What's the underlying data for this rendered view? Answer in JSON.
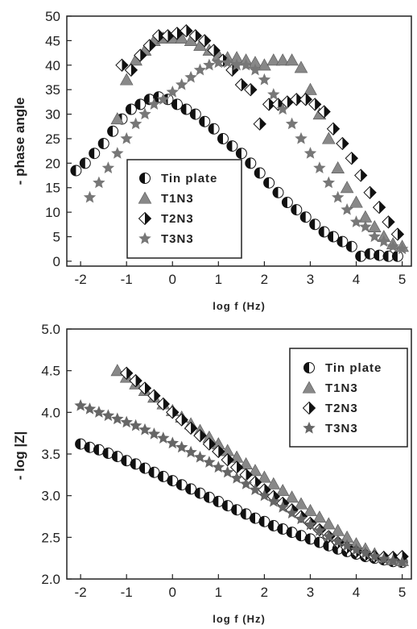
{
  "chart_data": [
    {
      "type": "scatter",
      "title": "",
      "xlabel": "log f (Hz)",
      "ylabel": "- phase angle",
      "xlim": [
        -2.3,
        5.2
      ],
      "ylim": [
        -1,
        50
      ],
      "xticks": [
        -2,
        -1,
        0,
        1,
        2,
        3,
        4,
        5
      ],
      "yticks": [
        0,
        5,
        10,
        15,
        20,
        25,
        30,
        35,
        40,
        45,
        50
      ],
      "legend_position": "lower-left",
      "series": [
        {
          "name": "Tin plate",
          "marker": "half-circle",
          "color": "#111111",
          "x": [
            -2.1,
            -1.9,
            -1.7,
            -1.5,
            -1.3,
            -1.1,
            -0.9,
            -0.7,
            -0.5,
            -0.3,
            -0.1,
            0.1,
            0.3,
            0.5,
            0.7,
            0.9,
            1.1,
            1.3,
            1.5,
            1.7,
            1.9,
            2.1,
            2.3,
            2.5,
            2.7,
            2.9,
            3.1,
            3.3,
            3.5,
            3.7,
            3.9,
            4.1,
            4.3,
            4.5,
            4.7,
            4.9
          ],
          "y": [
            18.5,
            20,
            22,
            24,
            26.5,
            29,
            31,
            32,
            33,
            33.5,
            33,
            32,
            31,
            30,
            28.5,
            27,
            25,
            23.5,
            22,
            20,
            18,
            16,
            14,
            12,
            10.5,
            9,
            7.5,
            6,
            5,
            4,
            3,
            1,
            1.5,
            1.2,
            1,
            1
          ]
        },
        {
          "name": "T1N3",
          "marker": "triangle",
          "color": "#888888",
          "x": [
            -1.2,
            -1.0,
            -0.8,
            -0.6,
            -0.4,
            -0.2,
            0.0,
            0.2,
            0.4,
            0.6,
            0.8,
            1.0,
            1.2,
            1.4,
            1.6,
            1.8,
            2.0,
            2.2,
            2.4,
            2.6,
            2.8,
            3.0,
            3.2,
            3.4,
            3.6,
            3.8,
            4.0,
            4.2,
            4.4,
            4.6,
            4.8,
            5.0
          ],
          "y": [
            29,
            37,
            41,
            43,
            45,
            45.5,
            45.5,
            45.5,
            45,
            44,
            43,
            42,
            41.5,
            41.5,
            41,
            40.5,
            40,
            41,
            41,
            41,
            39.5,
            35,
            30,
            25,
            19,
            15,
            12,
            9,
            7,
            5,
            3.5,
            3
          ]
        },
        {
          "name": "T2N3",
          "marker": "half-diamond",
          "color": "#111111",
          "x": [
            -1.1,
            -0.9,
            -0.7,
            -0.5,
            -0.3,
            -0.1,
            0.1,
            0.3,
            0.5,
            0.7,
            0.9,
            1.1,
            1.3,
            1.5,
            1.7,
            1.9,
            2.1,
            2.3,
            2.5,
            2.7,
            2.9,
            3.1,
            3.3,
            3.5,
            3.7,
            3.9,
            4.1,
            4.3,
            4.5,
            4.7,
            4.9
          ],
          "y": [
            40,
            39,
            42,
            44,
            46,
            46,
            46.5,
            47,
            46,
            45,
            43,
            41,
            39,
            36,
            35,
            28,
            32,
            32,
            32.5,
            33,
            33,
            32,
            30.5,
            27,
            24,
            21,
            17.5,
            14,
            11,
            8,
            5.5
          ]
        },
        {
          "name": "T3N3",
          "marker": "star",
          "color": "#777777",
          "x": [
            -1.8,
            -1.6,
            -1.4,
            -1.2,
            -1.0,
            -0.8,
            -0.6,
            -0.4,
            -0.2,
            0.0,
            0.2,
            0.4,
            0.6,
            0.8,
            1.0,
            1.2,
            1.4,
            1.6,
            1.8,
            2.0,
            2.2,
            2.4,
            2.6,
            2.8,
            3.0,
            3.2,
            3.4,
            3.6,
            3.8,
            4.0,
            4.2,
            4.4,
            4.6,
            4.8,
            5.0
          ],
          "y": [
            13,
            16,
            19,
            22,
            25,
            28,
            30,
            32,
            33,
            34.5,
            36,
            37.5,
            39,
            40,
            40.5,
            40.5,
            40,
            40,
            39,
            37,
            34,
            31,
            28,
            25,
            22,
            19,
            16,
            13,
            10.5,
            8,
            7,
            5,
            4,
            3,
            2.5
          ]
        }
      ]
    },
    {
      "type": "scatter",
      "title": "",
      "xlabel": "log f (Hz)",
      "ylabel": "- log |Z|",
      "xlim": [
        -2.3,
        5.2
      ],
      "ylim": [
        2.0,
        5.0
      ],
      "xticks": [
        -2,
        -1,
        0,
        1,
        2,
        3,
        4,
        5
      ],
      "yticks": [
        2.0,
        2.5,
        3.0,
        3.5,
        4.0,
        4.5,
        5.0
      ],
      "legend_position": "top-right",
      "series": [
        {
          "name": "Tin plate",
          "marker": "half-circle",
          "color": "#111111",
          "x": [
            -2.0,
            -1.8,
            -1.6,
            -1.4,
            -1.2,
            -1.0,
            -0.8,
            -0.6,
            -0.4,
            -0.2,
            0.0,
            0.2,
            0.4,
            0.6,
            0.8,
            1.0,
            1.2,
            1.4,
            1.6,
            1.8,
            2.0,
            2.2,
            2.4,
            2.6,
            2.8,
            3.0,
            3.2,
            3.4,
            3.6,
            3.8,
            4.0,
            4.2,
            4.4,
            4.6,
            4.8,
            5.0
          ],
          "y": [
            3.62,
            3.58,
            3.55,
            3.51,
            3.47,
            3.42,
            3.38,
            3.33,
            3.28,
            3.23,
            3.18,
            3.13,
            3.08,
            3.03,
            2.98,
            2.93,
            2.88,
            2.83,
            2.78,
            2.73,
            2.69,
            2.64,
            2.6,
            2.56,
            2.52,
            2.48,
            2.44,
            2.4,
            2.36,
            2.33,
            2.3,
            2.27,
            2.25,
            2.23,
            2.21,
            2.2
          ]
        },
        {
          "name": "T1N3",
          "marker": "triangle",
          "color": "#888888",
          "x": [
            -1.2,
            -1.0,
            -0.8,
            -0.6,
            -0.4,
            -0.2,
            0.0,
            0.2,
            0.4,
            0.6,
            0.8,
            1.0,
            1.2,
            1.4,
            1.6,
            1.8,
            2.0,
            2.2,
            2.4,
            2.6,
            2.8,
            3.0,
            3.2,
            3.4,
            3.6,
            3.8,
            4.0,
            4.2,
            4.4,
            4.6,
            4.8,
            5.0
          ],
          "y": [
            4.5,
            4.42,
            4.34,
            4.26,
            4.18,
            4.1,
            4.02,
            3.94,
            3.86,
            3.78,
            3.7,
            3.62,
            3.54,
            3.46,
            3.38,
            3.3,
            3.22,
            3.14,
            3.06,
            2.98,
            2.9,
            2.82,
            2.74,
            2.66,
            2.58,
            2.5,
            2.42,
            2.36,
            2.3,
            2.26,
            2.23,
            2.22
          ]
        },
        {
          "name": "T2N3",
          "marker": "half-diamond",
          "color": "#111111",
          "x": [
            -1.0,
            -0.8,
            -0.6,
            -0.4,
            -0.2,
            0.0,
            0.2,
            0.4,
            0.6,
            0.8,
            1.0,
            1.2,
            1.4,
            1.6,
            1.8,
            2.0,
            2.2,
            2.4,
            2.6,
            2.8,
            3.0,
            3.2,
            3.4,
            3.6,
            3.8,
            4.0,
            4.2,
            4.4,
            4.6,
            4.8,
            5.0
          ],
          "y": [
            4.47,
            4.38,
            4.29,
            4.2,
            4.1,
            4.0,
            3.91,
            3.81,
            3.72,
            3.62,
            3.53,
            3.43,
            3.34,
            3.25,
            3.16,
            3.07,
            2.99,
            2.91,
            2.83,
            2.75,
            2.67,
            2.59,
            2.51,
            2.44,
            2.38,
            2.33,
            2.29,
            2.27,
            2.26,
            2.26,
            2.27
          ]
        },
        {
          "name": "T3N3",
          "marker": "star",
          "color": "#666666",
          "x": [
            -2.0,
            -1.8,
            -1.6,
            -1.4,
            -1.2,
            -1.0,
            -0.8,
            -0.6,
            -0.4,
            -0.2,
            0.0,
            0.2,
            0.4,
            0.6,
            0.8,
            1.0,
            1.2,
            1.4,
            1.6,
            1.8,
            2.0,
            2.2,
            2.4,
            2.6,
            2.8,
            3.0,
            3.2,
            3.4,
            3.6,
            3.8,
            4.0,
            4.2,
            4.4,
            4.6,
            4.8,
            5.0
          ],
          "y": [
            4.08,
            4.04,
            4.0,
            3.96,
            3.92,
            3.88,
            3.84,
            3.79,
            3.74,
            3.69,
            3.63,
            3.58,
            3.52,
            3.46,
            3.4,
            3.34,
            3.28,
            3.21,
            3.14,
            3.07,
            3.0,
            2.93,
            2.86,
            2.79,
            2.72,
            2.65,
            2.58,
            2.51,
            2.45,
            2.4,
            2.35,
            2.31,
            2.27,
            2.24,
            2.22,
            2.2
          ]
        }
      ]
    }
  ]
}
